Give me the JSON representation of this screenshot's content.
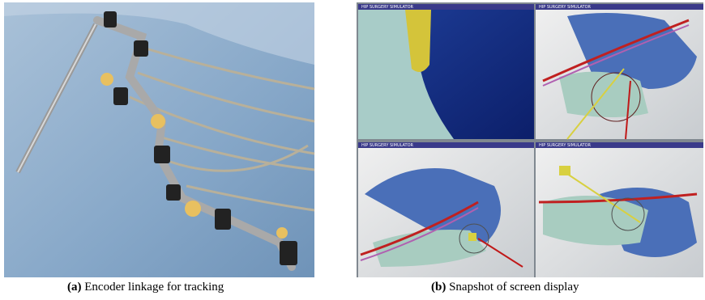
{
  "figure": {
    "panels": [
      {
        "label": "(a)",
        "caption": "Encoder linkage for tracking"
      },
      {
        "label": "(b)",
        "caption": "Snapshot of screen display",
        "windows": [
          {
            "title": "HIP SURGERY SIMULATOR"
          },
          {
            "title": "HIP SURGERY SIMULATOR"
          },
          {
            "title": "HIP SURGERY SIMULATOR"
          },
          {
            "title": "HIP SURGERY SIMULATOR"
          }
        ]
      }
    ]
  }
}
